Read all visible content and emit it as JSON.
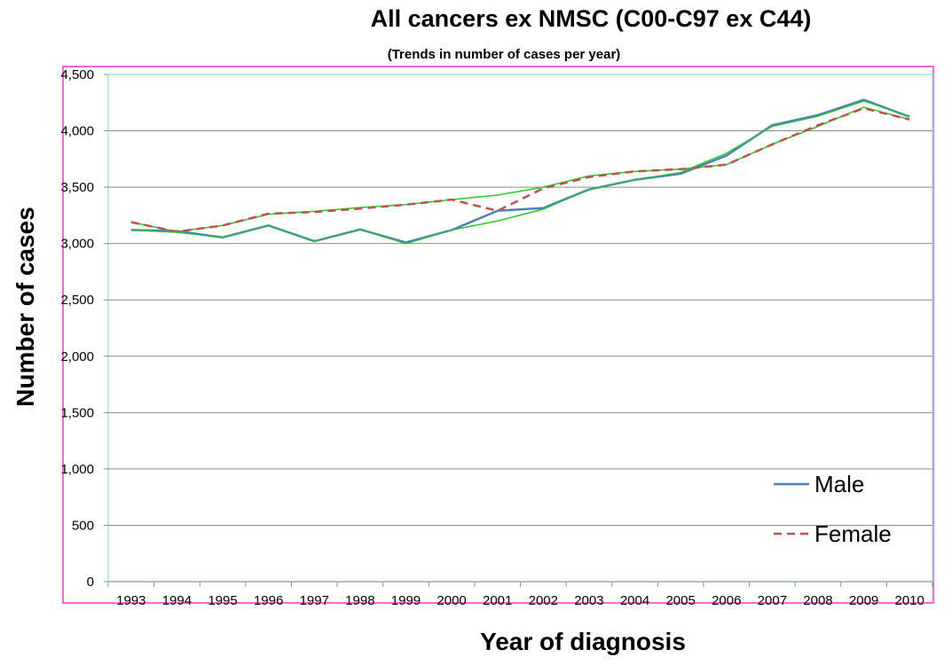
{
  "chart_data": {
    "type": "line",
    "title": "All cancers ex NMSC (C00-C97 ex C44)",
    "subtitle": "(Trends in number of cases per year)",
    "xlabel": "Year of diagnosis",
    "ylabel": "Number of cases",
    "ylim": [
      0,
      4500
    ],
    "yticks": [
      0,
      500,
      1000,
      1500,
      2000,
      2500,
      3000,
      3500,
      4000,
      4500
    ],
    "ytick_labels": [
      "0",
      "500",
      "1,000",
      "1,500",
      "2,000",
      "2,500",
      "3,000",
      "3,500",
      "4,000",
      "4,500"
    ],
    "grid": "horizontal",
    "legend_position": "bottom-right",
    "categories": [
      "1993",
      "1994",
      "1995",
      "1996",
      "1997",
      "1998",
      "1999",
      "2000",
      "2001",
      "2002",
      "2003",
      "2004",
      "2005",
      "2006",
      "2007",
      "2008",
      "2009",
      "2010"
    ],
    "series": [
      {
        "name": "Male",
        "color": "#4f81bd",
        "style": "solid",
        "values": [
          3120,
          3110,
          3055,
          3160,
          3020,
          3125,
          3010,
          3120,
          3290,
          3315,
          3480,
          3565,
          3620,
          3780,
          4050,
          4140,
          4275,
          4125
        ]
      },
      {
        "name": "Female",
        "color": "#c0504d",
        "style": "dashed",
        "values": [
          3190,
          3105,
          3160,
          3265,
          3280,
          3310,
          3345,
          3390,
          3290,
          3490,
          3590,
          3640,
          3660,
          3700,
          3880,
          4050,
          4200,
          4100
        ]
      }
    ],
    "trend_lines": {
      "color": "#22cc22",
      "lines": [
        [
          3190,
          3105,
          3160,
          3260,
          3285,
          3320,
          3345,
          3390,
          3430,
          3500,
          3600,
          3640,
          3660,
          3700,
          3880,
          4040,
          4210,
          4100
        ],
        [
          3120,
          3100,
          3055,
          3160,
          3020,
          3125,
          3000,
          3120,
          3200,
          3305,
          3480,
          3565,
          3630,
          3800,
          4040,
          4130,
          4265,
          4130
        ]
      ]
    }
  }
}
